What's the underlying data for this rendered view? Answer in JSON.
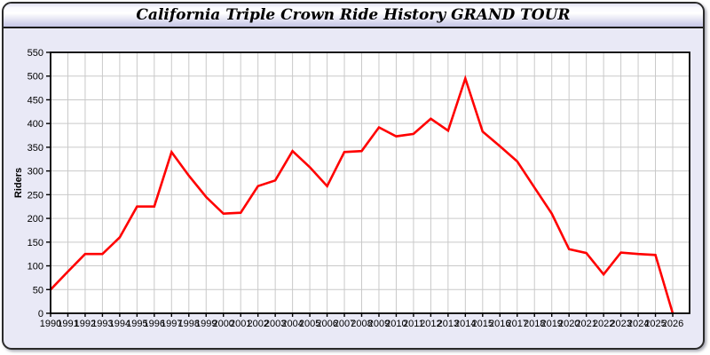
{
  "header": {
    "title": "California Triple Crown Ride History GRAND TOUR"
  },
  "chart_data": {
    "type": "line",
    "title": "California Triple Crown Ride History GRAND TOUR",
    "xlabel": "",
    "ylabel": "Riders",
    "ylim": [
      0,
      550
    ],
    "y_tick_step": 50,
    "y_ticks": [
      0,
      50,
      100,
      150,
      200,
      250,
      300,
      350,
      400,
      450,
      500,
      550
    ],
    "grid": true,
    "legend_position": "none",
    "x": [
      1990,
      1991,
      1992,
      1993,
      1994,
      1995,
      1996,
      1997,
      1998,
      1999,
      2000,
      2001,
      2002,
      2003,
      2004,
      2005,
      2006,
      2007,
      2008,
      2009,
      2010,
      2011,
      2012,
      2013,
      2014,
      2015,
      2016,
      2017,
      2018,
      2019,
      2020,
      2021,
      2022,
      2023,
      2024,
      2025,
      2026
    ],
    "series": [
      {
        "name": "Riders",
        "values": [
          50,
          88,
          125,
          125,
          160,
          225,
          225,
          340,
          290,
          245,
          210,
          212,
          268,
          280,
          342,
          308,
          268,
          340,
          342,
          392,
          373,
          378,
          410,
          385,
          495,
          383,
          352,
          320,
          265,
          210,
          135,
          127,
          82,
          128,
          125,
          123,
          0
        ]
      }
    ]
  },
  "colors": {
    "line": "#ff0000",
    "grid": "#c9c9c9",
    "axis": "#000000",
    "plot_bg": "#ffffff",
    "panel_bg": "#e9e9f6",
    "tick_label": "#000000"
  }
}
